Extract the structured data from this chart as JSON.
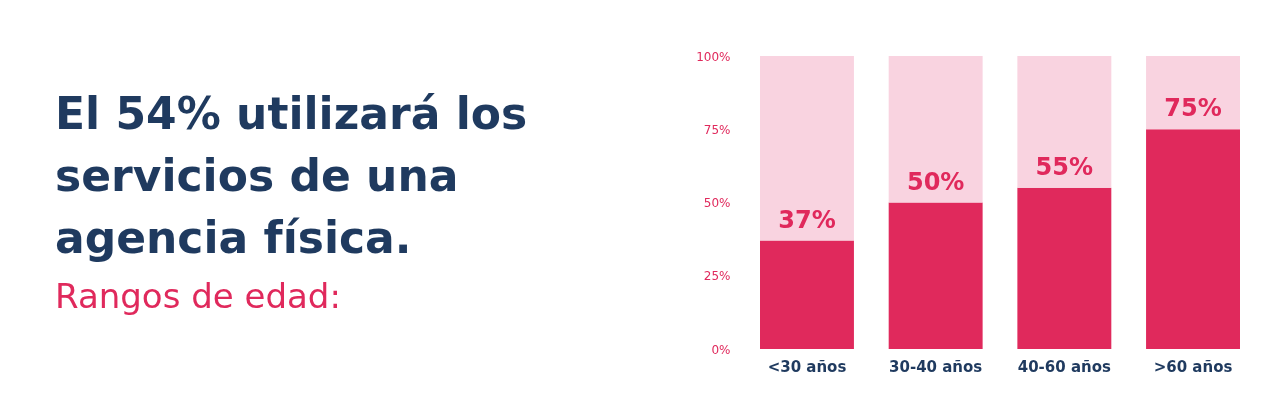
{
  "chart_data": {
    "type": "bar",
    "stacked": true,
    "title": "El 54% utilizará los servicios de una agencia física.",
    "subtitle": "Rangos de edad:",
    "categories": [
      "<30 años",
      "30-40 años",
      "40-60 años",
      ">60 años"
    ],
    "series": [
      {
        "color": "#e0295c",
        "values": [
          37,
          50,
          55,
          75
        ],
        "value_labels": [
          "37%",
          "50%",
          "55%",
          "75%"
        ]
      },
      {
        "color": "#f9d3e0",
        "values": [
          63,
          50,
          45,
          25
        ]
      }
    ],
    "ylim": [
      0,
      100
    ],
    "yticks": [
      {
        "value": 0,
        "label": "0%"
      },
      {
        "value": 25,
        "label": "25%"
      },
      {
        "value": 50,
        "label": "50%"
      },
      {
        "value": 75,
        "label": "75%"
      },
      {
        "value": 100,
        "label": "100%"
      }
    ],
    "grid": false,
    "legend": false
  }
}
